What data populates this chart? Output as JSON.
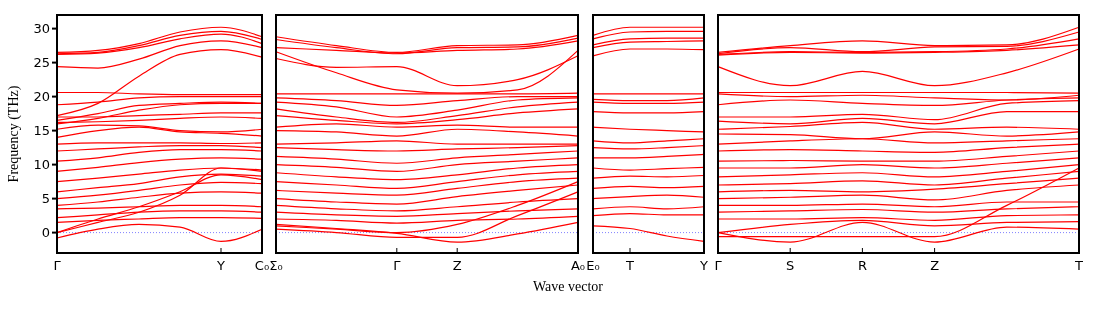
{
  "chart_data": [
    {
      "type": "line",
      "ylabel": "Frequency (THz)",
      "color": "#ff0000",
      "categories": [
        "Γ",
        null,
        null,
        null,
        "Y",
        "C₀"
      ],
      "ylim": [
        -3,
        32
      ],
      "yticks": [
        0,
        5,
        10,
        15,
        20,
        25,
        30
      ],
      "ref_lines": [
        {
          "axis": "y",
          "value": 0,
          "color": "#8080ff",
          "line_style": "dotted"
        }
      ],
      "series": [
        {
          "values": [
            26.5,
            26.8,
            27.8,
            29.5,
            30.2,
            28.8
          ]
        },
        {
          "values": [
            26.3,
            26.5,
            27.5,
            29,
            29.6,
            28.4
          ]
        },
        {
          "values": [
            26.2,
            26.4,
            27.2,
            28.5,
            29.2,
            27.8
          ]
        },
        {
          "values": [
            24.4,
            24.2,
            25.5,
            27.5,
            28.2,
            27.2
          ]
        },
        {
          "values": [
            17.2,
            19,
            23,
            26.2,
            26.9,
            25.8
          ]
        },
        {
          "values": [
            20.6,
            20.6,
            20.4,
            20.3,
            20.3,
            20.3
          ]
        },
        {
          "values": [
            18.8,
            19.2,
            19.8,
            20,
            20,
            20
          ]
        },
        {
          "values": [
            16.5,
            17.5,
            18.7,
            19,
            19.2,
            19
          ]
        },
        {
          "values": [
            16,
            16.8,
            18,
            18.8,
            19,
            19
          ]
        },
        {
          "values": [
            17,
            17,
            17.2,
            17.4,
            17.6,
            17.6
          ]
        },
        {
          "values": [
            16.2,
            16.3,
            16.5,
            16.8,
            17,
            16.8
          ]
        },
        {
          "values": [
            15.2,
            15.8,
            15.7,
            15,
            14.8,
            15.2
          ]
        },
        {
          "values": [
            14,
            15,
            15.5,
            14.8,
            14.6,
            14.2
          ]
        },
        {
          "values": [
            13,
            13.2,
            13.2,
            13.2,
            13.1,
            13.2
          ]
        },
        {
          "values": [
            12,
            12.3,
            12.6,
            12.8,
            12.8,
            12.5
          ]
        },
        {
          "values": [
            10.5,
            11,
            11.8,
            12.2,
            12.2,
            12
          ]
        },
        {
          "values": [
            9,
            9.6,
            10.3,
            10.8,
            11,
            10.8
          ]
        },
        {
          "values": [
            7.5,
            8,
            8.6,
            9.2,
            9.5,
            9.2
          ]
        },
        {
          "values": [
            6,
            6.6,
            7.2,
            8.2,
            8.6,
            8.3
          ]
        },
        {
          "values": [
            5,
            5.5,
            6.2,
            7,
            7.4,
            7.2
          ]
        },
        {
          "values": [
            4,
            4.5,
            5.2,
            5.8,
            6,
            5.8
          ]
        },
        {
          "values": [
            3.5,
            3.6,
            3.8,
            4,
            4,
            3.8
          ]
        },
        {
          "values": [
            2.2,
            2.6,
            3,
            3.2,
            3.2,
            3
          ]
        },
        {
          "values": [
            1.5,
            1.8,
            2,
            2.2,
            2.2,
            2.1
          ]
        },
        {
          "values": [
            0,
            2,
            3.8,
            6,
            8.5,
            7.8
          ]
        },
        {
          "values": [
            0,
            1.5,
            3,
            5.5,
            9.5,
            9
          ]
        },
        {
          "values": [
            -0.8,
            0.5,
            1.2,
            0.8,
            -1.3,
            0.5
          ]
        }
      ]
    },
    {
      "type": "line",
      "xlabel": "Wave vector",
      "color": "#ff0000",
      "tick_labels": "x",
      "categories": [
        "Σ₀",
        null,
        "Γ",
        "Z",
        null,
        "A₀"
      ],
      "ylim": [
        -3,
        32
      ],
      "yticks": [
        0,
        5,
        10,
        15,
        20,
        25,
        30
      ],
      "ref_lines": [
        {
          "axis": "y",
          "value": 0,
          "color": "#8080ff",
          "line_style": "dotted"
        }
      ],
      "series": [
        {
          "values": [
            28.8,
            27.5,
            26.5,
            27.5,
            27.6,
            29
          ]
        },
        {
          "values": [
            28.4,
            27.2,
            26.3,
            27.2,
            27.3,
            28.6
          ]
        },
        {
          "values": [
            27.2,
            26.8,
            26.4,
            26.8,
            27,
            28.2
          ]
        },
        {
          "values": [
            26.6,
            23.5,
            21,
            20.5,
            21,
            26.8
          ]
        },
        {
          "values": [
            25.6,
            24.3,
            24.4,
            21.6,
            22.5,
            26
          ]
        },
        {
          "values": [
            20.4,
            20.4,
            20.4,
            20.4,
            20.4,
            20.5
          ]
        },
        {
          "values": [
            19.8,
            19.4,
            18.7,
            19.4,
            20,
            20
          ]
        },
        {
          "values": [
            19.2,
            18.5,
            17,
            18,
            19.5,
            19.8
          ]
        },
        {
          "values": [
            18.2,
            17,
            16.2,
            17.2,
            18.5,
            19.2
          ]
        },
        {
          "values": [
            17.2,
            16.5,
            16,
            16.6,
            17.6,
            18.2
          ]
        },
        {
          "values": [
            15.5,
            16,
            15.5,
            15.8,
            15.5,
            15.5
          ]
        },
        {
          "values": [
            15,
            14.8,
            14.2,
            15.2,
            14.8,
            14.2
          ]
        },
        {
          "values": [
            13,
            13.2,
            13.5,
            13,
            13,
            13
          ]
        },
        {
          "values": [
            12.5,
            12.2,
            12,
            12.3,
            12.5,
            12.8
          ]
        },
        {
          "values": [
            11.2,
            10.8,
            10.2,
            11,
            11.5,
            12
          ]
        },
        {
          "values": [
            10,
            9.6,
            9,
            10,
            10.5,
            11
          ]
        },
        {
          "values": [
            8.8,
            8.2,
            7.8,
            8.5,
            9.5,
            10
          ]
        },
        {
          "values": [
            7.5,
            7,
            6.5,
            7.5,
            8.5,
            9
          ]
        },
        {
          "values": [
            6.2,
            5.8,
            5.5,
            6.5,
            7.5,
            8
          ]
        },
        {
          "values": [
            5,
            4.5,
            4.2,
            5.3,
            6.2,
            7
          ]
        },
        {
          "values": [
            4,
            3.5,
            3.2,
            3.8,
            4.5,
            5
          ]
        },
        {
          "values": [
            3,
            2.6,
            2.4,
            2.8,
            3.2,
            3.5
          ]
        },
        {
          "values": [
            2,
            1.8,
            1.4,
            1.8,
            2,
            2.4
          ]
        },
        {
          "values": [
            1,
            0.5,
            0,
            1.2,
            4,
            7.5
          ]
        },
        {
          "values": [
            0.5,
            0,
            -0.7,
            -0.7,
            2.5,
            6
          ]
        },
        {
          "values": [
            1.2,
            0.6,
            -0.1,
            -1.4,
            -0.2,
            1.5
          ]
        }
      ]
    },
    {
      "type": "line",
      "color": "#ff0000",
      "tick_labels": "x",
      "categories": [
        "E₀",
        "T",
        null,
        "Y"
      ],
      "ylim": [
        -3,
        32
      ],
      "yticks": [
        0,
        5,
        10,
        15,
        20,
        25,
        30
      ],
      "ref_lines": [
        {
          "axis": "y",
          "value": 0,
          "color": "#8080ff",
          "line_style": "dotted"
        }
      ],
      "series": [
        {
          "values": [
            29,
            30.2,
            30.2,
            30.2
          ]
        },
        {
          "values": [
            28.5,
            29.5,
            29.6,
            29.6
          ]
        },
        {
          "values": [
            27.6,
            28.5,
            28.6,
            28.6
          ]
        },
        {
          "values": [
            27.2,
            28,
            28.1,
            28.2
          ]
        },
        {
          "values": [
            26,
            27,
            27,
            26.9
          ]
        },
        {
          "values": [
            20.4,
            20.4,
            20.4,
            20.4
          ]
        },
        {
          "values": [
            19.6,
            19.4,
            19.4,
            19.8
          ]
        },
        {
          "values": [
            19.2,
            19,
            19,
            19.2
          ]
        },
        {
          "values": [
            17.8,
            17.6,
            17.6,
            17.8
          ]
        },
        {
          "values": [
            15.5,
            15.2,
            15,
            14.8
          ]
        },
        {
          "values": [
            13.5,
            13.2,
            13.5,
            13.8
          ]
        },
        {
          "values": [
            12.5,
            12.3,
            12.5,
            12.8
          ]
        },
        {
          "values": [
            11,
            11,
            11.2,
            11.5
          ]
        },
        {
          "values": [
            9.5,
            9.2,
            9.4,
            9.6
          ]
        },
        {
          "values": [
            8,
            8.3,
            8.2,
            8.4
          ]
        },
        {
          "values": [
            6.5,
            6.8,
            6.6,
            6.8
          ]
        },
        {
          "values": [
            5,
            5.3,
            5.5,
            5.2
          ]
        },
        {
          "values": [
            3.5,
            3.8,
            3.5,
            3.8
          ]
        },
        {
          "values": [
            2.5,
            2.8,
            2.6,
            2.6
          ]
        },
        {
          "values": [
            1,
            0.6,
            -0.5,
            -1.3
          ]
        }
      ]
    },
    {
      "type": "line",
      "color": "#ff0000",
      "tick_labels": "x",
      "categories": [
        "Γ",
        "S",
        "R",
        "Z",
        null,
        "T"
      ],
      "ylim": [
        -3,
        32
      ],
      "yticks": [
        0,
        5,
        10,
        15,
        20,
        25,
        30
      ],
      "ref_lines": [
        {
          "axis": "y",
          "value": 0,
          "color": "#8080ff",
          "line_style": "dotted"
        }
      ],
      "series": [
        {
          "values": [
            26.5,
            27.5,
            28.2,
            27.5,
            27.6,
            30.2
          ]
        },
        {
          "values": [
            26.3,
            27.2,
            26.6,
            27.3,
            27.4,
            29.5
          ]
        },
        {
          "values": [
            26.2,
            26.6,
            26.5,
            26.6,
            27,
            28.5
          ]
        },
        {
          "values": [
            26.1,
            26.5,
            26.4,
            26.5,
            26.8,
            27.6
          ]
        },
        {
          "values": [
            24.4,
            21.6,
            23.7,
            21.6,
            23.5,
            27
          ]
        },
        {
          "values": [
            20.6,
            20.6,
            20.6,
            20.6,
            20.6,
            20.5
          ]
        },
        {
          "values": [
            20.4,
            20,
            20.2,
            19.8,
            19.5,
            20.2
          ]
        },
        {
          "values": [
            18.8,
            19.5,
            19,
            18.7,
            19.5,
            19.8
          ]
        },
        {
          "values": [
            17,
            17,
            17.4,
            16.6,
            19,
            19.4
          ]
        },
        {
          "values": [
            16.4,
            16,
            16.8,
            16,
            17.8,
            17.8
          ]
        },
        {
          "values": [
            15.2,
            15.6,
            16.2,
            15.2,
            15.5,
            15.2
          ]
        },
        {
          "values": [
            14.5,
            14.4,
            13.8,
            14.8,
            14.2,
            14.8
          ]
        },
        {
          "values": [
            13,
            13.5,
            13.8,
            13.2,
            13.5,
            13.8
          ]
        },
        {
          "values": [
            12,
            12.2,
            12,
            11.8,
            12.5,
            13
          ]
        },
        {
          "values": [
            10.5,
            10.6,
            10.5,
            10.5,
            11.2,
            12
          ]
        },
        {
          "values": [
            9.5,
            9.5,
            10,
            9.5,
            10.2,
            11
          ]
        },
        {
          "values": [
            8.2,
            8.5,
            8.8,
            8.2,
            9,
            10
          ]
        },
        {
          "values": [
            7,
            7.2,
            7.6,
            7,
            8,
            9
          ]
        },
        {
          "values": [
            6,
            6.2,
            6,
            6.4,
            7.2,
            8
          ]
        },
        {
          "values": [
            5,
            5.2,
            5.5,
            4.8,
            6.2,
            7
          ]
        },
        {
          "values": [
            4,
            4,
            4.2,
            3.8,
            4.5,
            4.5
          ]
        },
        {
          "values": [
            3,
            3.2,
            3.4,
            3,
            3.5,
            3.8
          ]
        },
        {
          "values": [
            2,
            2,
            2.2,
            1.8,
            2.5,
            2.6
          ]
        },
        {
          "values": [
            0,
            1.2,
            1.8,
            1,
            1.5,
            1.6
          ]
        },
        {
          "values": [
            -0.6,
            -0.6,
            -0.6,
            -0.6,
            4,
            9.5
          ]
        },
        {
          "values": [
            0,
            -1.4,
            1.5,
            -1.4,
            0.8,
            0.5
          ]
        }
      ]
    }
  ]
}
